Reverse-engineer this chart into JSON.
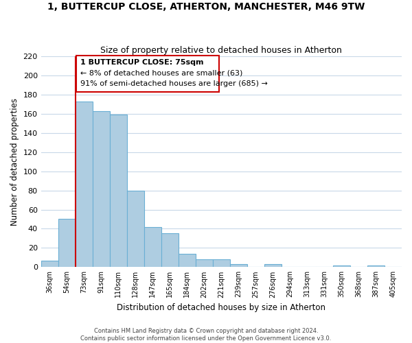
{
  "title": "1, BUTTERCUP CLOSE, ATHERTON, MANCHESTER, M46 9TW",
  "subtitle": "Size of property relative to detached houses in Atherton",
  "xlabel": "Distribution of detached houses by size in Atherton",
  "ylabel": "Number of detached properties",
  "footer_line1": "Contains HM Land Registry data © Crown copyright and database right 2024.",
  "footer_line2": "Contains public sector information licensed under the Open Government Licence v3.0.",
  "bin_labels": [
    "36sqm",
    "54sqm",
    "73sqm",
    "91sqm",
    "110sqm",
    "128sqm",
    "147sqm",
    "165sqm",
    "184sqm",
    "202sqm",
    "221sqm",
    "239sqm",
    "257sqm",
    "276sqm",
    "294sqm",
    "313sqm",
    "331sqm",
    "350sqm",
    "368sqm",
    "387sqm",
    "405sqm"
  ],
  "bar_heights": [
    7,
    50,
    173,
    163,
    159,
    80,
    42,
    35,
    14,
    8,
    8,
    3,
    0,
    3,
    0,
    0,
    0,
    2,
    0,
    2,
    0
  ],
  "bar_color": "#aecde1",
  "bar_edge_color": "#6aafd4",
  "highlight_line_color": "#cc0000",
  "annotation_title": "1 BUTTERCUP CLOSE: 75sqm",
  "annotation_line1": "← 8% of detached houses are smaller (63)",
  "annotation_line2": "91% of semi-detached houses are larger (685) →",
  "annotation_box_color": "#ffffff",
  "annotation_box_edge_color": "#cc0000",
  "ylim": [
    0,
    220
  ],
  "yticks": [
    0,
    20,
    40,
    60,
    80,
    100,
    120,
    140,
    160,
    180,
    200,
    220
  ],
  "background_color": "#ffffff",
  "grid_color": "#c8d8e8"
}
